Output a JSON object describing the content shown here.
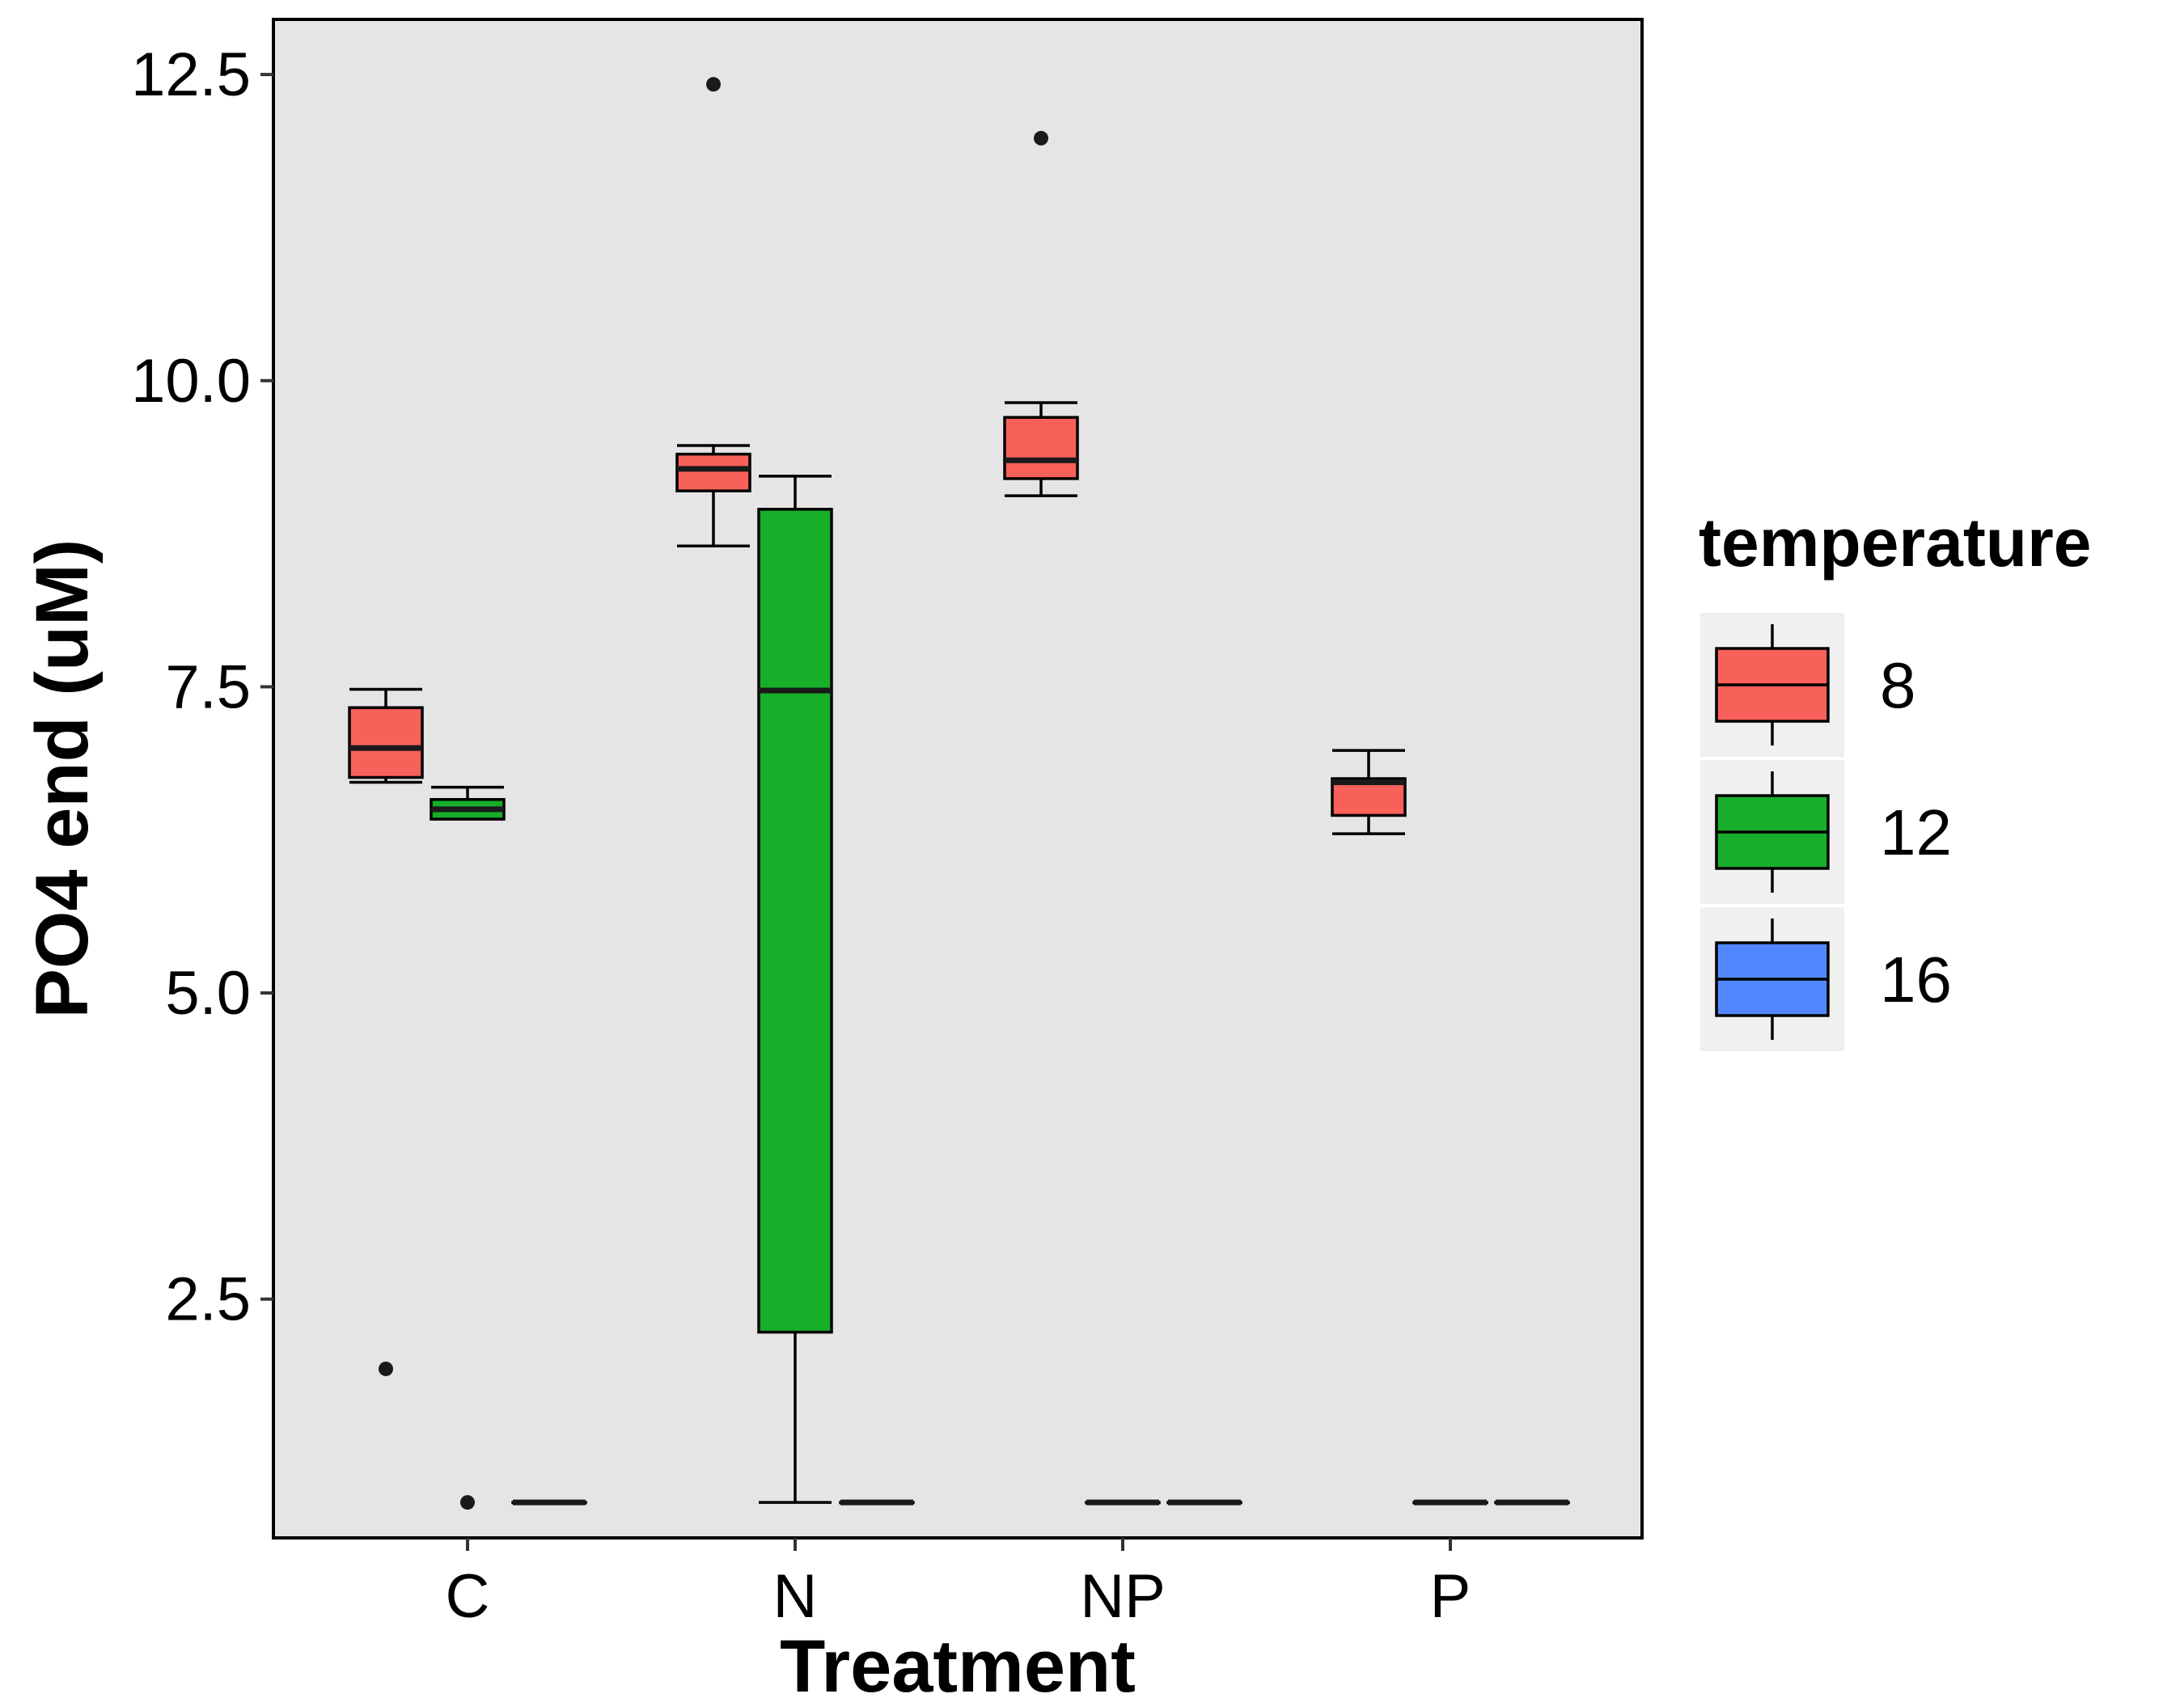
{
  "chart_data": {
    "type": "boxplot",
    "xlabel": "Treatment",
    "ylabel": "PO4 end (uM)",
    "ylim": [
      0.55,
      12.95
    ],
    "yticks": [
      2.5,
      5.0,
      7.5,
      10.0,
      12.5
    ],
    "ytick_labels": [
      "2.5",
      "5.0",
      "7.5",
      "10.0",
      "12.5"
    ],
    "categories": [
      "C",
      "N",
      "NP",
      "P"
    ],
    "grid": false,
    "panel_background": "#e5e5e5",
    "legend": {
      "title": "temperature",
      "placement": "right",
      "entries": [
        {
          "label": "8",
          "color": "#f8605a"
        },
        {
          "label": "12",
          "color": "#17ae2a"
        },
        {
          "label": "16",
          "color": "#5188ff"
        }
      ]
    },
    "series": [
      {
        "group": "8",
        "color": "#f8605a",
        "boxes": [
          {
            "category": "C",
            "whisker_low": 6.72,
            "q1": 6.76,
            "median": 7.0,
            "q3": 7.33,
            "whisker_high": 7.48,
            "outliers": [
              1.93
            ]
          },
          {
            "category": "N",
            "whisker_low": 8.65,
            "q1": 9.1,
            "median": 9.28,
            "q3": 9.4,
            "whisker_high": 9.47,
            "outliers": [
              12.42
            ]
          },
          {
            "category": "NP",
            "whisker_low": 9.06,
            "q1": 9.2,
            "median": 9.35,
            "q3": 9.7,
            "whisker_high": 9.82,
            "outliers": [
              11.98
            ]
          },
          {
            "category": "P",
            "whisker_low": 6.3,
            "q1": 6.45,
            "median": 6.72,
            "q3": 6.75,
            "whisker_high": 6.98,
            "outliers": []
          }
        ]
      },
      {
        "group": "12",
        "color": "#17ae2a",
        "boxes": [
          {
            "category": "C",
            "whisker_low": 6.42,
            "q1": 6.42,
            "median": 6.5,
            "q3": 6.58,
            "whisker_high": 6.68,
            "outliers": [
              0.84
            ]
          },
          {
            "category": "N",
            "whisker_low": 0.84,
            "q1": 2.23,
            "median": 7.47,
            "q3": 8.95,
            "whisker_high": 9.22,
            "outliers": []
          },
          {
            "category": "NP",
            "whisker_low": 0.84,
            "q1": 0.84,
            "median": 0.84,
            "q3": 0.84,
            "whisker_high": 0.84,
            "outliers": []
          },
          {
            "category": "P",
            "whisker_low": 0.84,
            "q1": 0.84,
            "median": 0.84,
            "q3": 0.84,
            "whisker_high": 0.84,
            "outliers": []
          }
        ]
      },
      {
        "group": "16",
        "color": "#5188ff",
        "boxes": [
          {
            "category": "C",
            "whisker_low": 0.84,
            "q1": 0.84,
            "median": 0.84,
            "q3": 0.84,
            "whisker_high": 0.84,
            "outliers": []
          },
          {
            "category": "N",
            "whisker_low": 0.84,
            "q1": 0.84,
            "median": 0.84,
            "q3": 0.84,
            "whisker_high": 0.84,
            "outliers": []
          },
          {
            "category": "NP",
            "whisker_low": 0.84,
            "q1": 0.84,
            "median": 0.84,
            "q3": 0.84,
            "whisker_high": 0.84,
            "outliers": []
          },
          {
            "category": "P",
            "whisker_low": 0.84,
            "q1": 0.84,
            "median": 0.84,
            "q3": 0.84,
            "whisker_high": 0.84,
            "outliers": []
          }
        ]
      }
    ]
  }
}
